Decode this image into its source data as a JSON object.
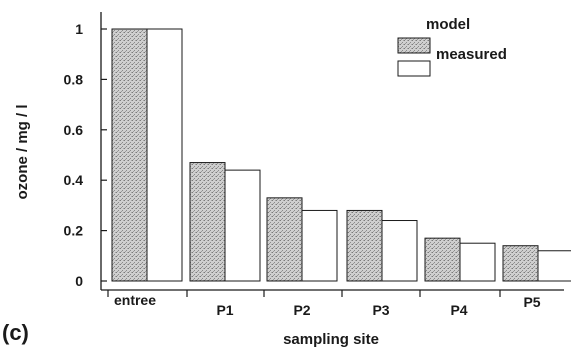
{
  "chart_data": {
    "type": "bar",
    "panel_label": "(c)",
    "xlabel": "sampling site",
    "ylabel": "ozone / mg / l",
    "categories": [
      "entree",
      "P1",
      "P2",
      "P3",
      "P4",
      "P5"
    ],
    "series": [
      {
        "name": "model",
        "values": [
          1.0,
          0.47,
          0.33,
          0.28,
          0.17,
          0.14
        ],
        "pattern": "stippled",
        "color": "#c9c9c9"
      },
      {
        "name": "measured",
        "values": [
          1.0,
          0.44,
          0.28,
          0.24,
          0.15,
          0.12
        ],
        "pattern": "open",
        "color": "#ffffff"
      }
    ],
    "ylim": [
      0,
      1
    ],
    "yticks": [
      {
        "value": 0,
        "label": "0"
      },
      {
        "value": 0.2,
        "label": "0.2"
      },
      {
        "value": 0.4,
        "label": "0.4"
      },
      {
        "value": 0.6,
        "label": "0.6"
      },
      {
        "value": 0.8,
        "label": "0.8"
      },
      {
        "value": 1,
        "label": "1"
      }
    ],
    "legend_position": "top-right",
    "grid": false
  }
}
